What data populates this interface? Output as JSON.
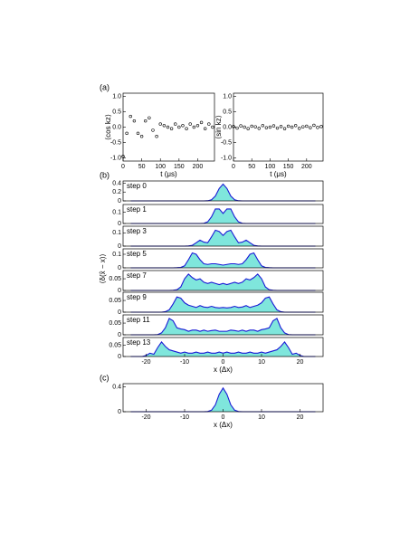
{
  "chart_data": [
    {
      "type": "scatter",
      "panel": "(a)",
      "ylabel": "⟨cos kz⟩",
      "xlabel": "t (μs)",
      "color": "#000000",
      "x": [
        0,
        10,
        20,
        30,
        40,
        50,
        60,
        70,
        80,
        90,
        100,
        110,
        120,
        130,
        140,
        150,
        160,
        170,
        180,
        190,
        200,
        210,
        220,
        230,
        240
      ],
      "values": [
        -0.95,
        -0.2,
        0.35,
        0.2,
        -0.2,
        -0.3,
        0.2,
        0.3,
        -0.1,
        -0.3,
        0.1,
        0.05,
        0.0,
        -0.05,
        0.1,
        0.0,
        0.05,
        -0.05,
        0.1,
        0.0,
        0.05,
        0.15,
        -0.05,
        0.1,
        0.0
      ],
      "xlim": [
        0,
        245
      ],
      "xticks": [
        0,
        50,
        100,
        150,
        200
      ],
      "ylim": [
        -1.1,
        1.1
      ],
      "yticks": [
        {
          "value": -1,
          "label": "-1.0"
        },
        {
          "value": -0.5,
          "label": "-0.5"
        },
        {
          "value": 0,
          "label": "0.0"
        },
        {
          "value": 0.5,
          "label": "0.5"
        },
        {
          "value": 1,
          "label": "1.0"
        }
      ]
    },
    {
      "type": "scatter",
      "ylabel": "⟨sin kz⟩",
      "xlabel": "t (μs)",
      "color": "#000000",
      "x": [
        0,
        10,
        20,
        30,
        40,
        50,
        60,
        70,
        80,
        90,
        100,
        110,
        120,
        130,
        140,
        150,
        160,
        170,
        180,
        190,
        200,
        210,
        220,
        230,
        240
      ],
      "values": [
        0.02,
        -0.03,
        0.04,
        0.0,
        -0.05,
        0.03,
        0.01,
        -0.04,
        0.05,
        -0.02,
        0.0,
        0.04,
        -0.03,
        0.02,
        -0.05,
        0.03,
        0.0,
        0.05,
        -0.04,
        0.01,
        0.03,
        -0.02,
        0.06,
        -0.01,
        0.02
      ],
      "xlim": [
        0,
        245
      ],
      "xticks": [
        0,
        50,
        100,
        150,
        200
      ],
      "ylim": [
        -1.1,
        1.1
      ],
      "yticks": [
        {
          "value": -1,
          "label": "-1.0"
        },
        {
          "value": -0.5,
          "label": "-0.5"
        },
        {
          "value": 0,
          "label": "0.0"
        },
        {
          "value": 0.5,
          "label": "0.5"
        },
        {
          "value": 1,
          "label": "1.0"
        }
      ]
    },
    {
      "type": "line",
      "panel": "(b)",
      "annotation": "step 0",
      "color": "#1a1ad6",
      "fill_color": "#7fe6dc",
      "x": [
        -24,
        -23,
        -22,
        -21,
        -20,
        -19,
        -18,
        -17,
        -16,
        -15,
        -14,
        -13,
        -12,
        -11,
        -10,
        -9,
        -8,
        -7,
        -6,
        -5,
        -4,
        -3,
        -2,
        -1,
        0,
        1,
        2,
        3,
        4,
        5,
        6,
        7,
        8,
        9,
        10,
        11,
        12,
        13,
        14,
        15,
        16,
        17,
        18,
        19,
        20,
        21,
        22,
        23,
        24
      ],
      "values": [
        0,
        0,
        0,
        0,
        0,
        0,
        0,
        0,
        0,
        0,
        0,
        0,
        0,
        0,
        0,
        0,
        0,
        0,
        0,
        0,
        0.003,
        0.025,
        0.11,
        0.28,
        0.38,
        0.28,
        0.11,
        0.025,
        0.003,
        0,
        0,
        0,
        0,
        0,
        0,
        0,
        0,
        0,
        0,
        0,
        0,
        0,
        0,
        0,
        0,
        0,
        0,
        0,
        0
      ],
      "xlim": [
        -26,
        26
      ],
      "ylim": [
        0,
        0.45
      ],
      "yticks": [
        0,
        0.2,
        0.4
      ]
    },
    {
      "type": "line",
      "annotation": "step 1",
      "color": "#1a1ad6",
      "fill_color": "#7fe6dc",
      "x": [
        -24,
        -23,
        -22,
        -21,
        -20,
        -19,
        -18,
        -17,
        -16,
        -15,
        -14,
        -13,
        -12,
        -11,
        -10,
        -9,
        -8,
        -7,
        -6,
        -5,
        -4,
        -3,
        -2,
        -1,
        0,
        1,
        2,
        3,
        4,
        5,
        6,
        7,
        8,
        9,
        10,
        11,
        12,
        13,
        14,
        15,
        16,
        17,
        18,
        19,
        20,
        21,
        22,
        23,
        24
      ],
      "values": [
        0,
        0,
        0,
        0,
        0,
        0,
        0,
        0,
        0,
        0,
        0,
        0,
        0,
        0,
        0,
        0,
        0,
        0,
        0,
        0.002,
        0.015,
        0.06,
        0.13,
        0.13,
        0.09,
        0.13,
        0.13,
        0.06,
        0.015,
        0.002,
        0,
        0,
        0,
        0,
        0,
        0,
        0,
        0,
        0,
        0,
        0,
        0,
        0,
        0,
        0,
        0,
        0,
        0,
        0
      ],
      "xlim": [
        -26,
        26
      ],
      "ylim": [
        0,
        0.17
      ],
      "yticks": [
        0,
        0.1
      ]
    },
    {
      "type": "line",
      "annotation": "step 3",
      "color": "#1a1ad6",
      "fill_color": "#7fe6dc",
      "x": [
        -24,
        -23,
        -22,
        -21,
        -20,
        -19,
        -18,
        -17,
        -16,
        -15,
        -14,
        -13,
        -12,
        -11,
        -10,
        -9,
        -8,
        -7,
        -6,
        -5,
        -4,
        -3,
        -2,
        -1,
        0,
        1,
        2,
        3,
        4,
        5,
        6,
        7,
        8,
        9,
        10,
        11,
        12,
        13,
        14,
        15,
        16,
        17,
        18,
        19,
        20,
        21,
        22,
        23,
        24
      ],
      "values": [
        0,
        0,
        0,
        0,
        0,
        0,
        0,
        0,
        0,
        0,
        0,
        0,
        0,
        0,
        0,
        0.001,
        0.006,
        0.025,
        0.045,
        0.03,
        0.025,
        0.07,
        0.12,
        0.11,
        0.08,
        0.11,
        0.12,
        0.07,
        0.025,
        0.03,
        0.045,
        0.025,
        0.006,
        0.001,
        0,
        0,
        0,
        0,
        0,
        0,
        0,
        0,
        0,
        0,
        0,
        0,
        0,
        0,
        0
      ],
      "xlim": [
        -26,
        26
      ],
      "ylim": [
        0,
        0.15
      ],
      "yticks": [
        0,
        0.1
      ]
    },
    {
      "type": "line",
      "annotation": "step 5",
      "color": "#1a1ad6",
      "fill_color": "#7fe6dc",
      "x": [
        -24,
        -23,
        -22,
        -21,
        -20,
        -19,
        -18,
        -17,
        -16,
        -15,
        -14,
        -13,
        -12,
        -11,
        -10,
        -9,
        -8,
        -7,
        -6,
        -5,
        -4,
        -3,
        -2,
        -1,
        0,
        1,
        2,
        3,
        4,
        5,
        6,
        7,
        8,
        9,
        10,
        11,
        12,
        13,
        14,
        15,
        16,
        17,
        18,
        19,
        20,
        21,
        22,
        23,
        24
      ],
      "values": [
        0,
        0,
        0,
        0,
        0,
        0,
        0,
        0,
        0,
        0,
        0,
        0,
        0.001,
        0.003,
        0.015,
        0.06,
        0.11,
        0.1,
        0.06,
        0.03,
        0.025,
        0.03,
        0.03,
        0.025,
        0.02,
        0.025,
        0.03,
        0.03,
        0.025,
        0.03,
        0.06,
        0.1,
        0.11,
        0.06,
        0.015,
        0.003,
        0.001,
        0,
        0,
        0,
        0,
        0,
        0,
        0,
        0,
        0,
        0,
        0,
        0
      ],
      "xlim": [
        -26,
        26
      ],
      "ylim": [
        0,
        0.14
      ],
      "yticks": [
        0,
        0.1
      ]
    },
    {
      "type": "line",
      "annotation": "step 7",
      "ylabel": "⟨δ(x̂ − x)⟩",
      "color": "#1a1ad6",
      "fill_color": "#7fe6dc",
      "x": [
        -24,
        -23,
        -22,
        -21,
        -20,
        -19,
        -18,
        -17,
        -16,
        -15,
        -14,
        -13,
        -12,
        -11,
        -10,
        -9,
        -8,
        -7,
        -6,
        -5,
        -4,
        -3,
        -2,
        -1,
        0,
        1,
        2,
        3,
        4,
        5,
        6,
        7,
        8,
        9,
        10,
        11,
        12,
        13,
        14,
        15,
        16,
        17,
        18,
        19,
        20,
        21,
        22,
        23,
        24
      ],
      "values": [
        0,
        0,
        0,
        0,
        0,
        0,
        0,
        0,
        0,
        0,
        0,
        0.001,
        0.003,
        0.015,
        0.05,
        0.07,
        0.055,
        0.045,
        0.05,
        0.035,
        0.03,
        0.035,
        0.03,
        0.025,
        0.03,
        0.025,
        0.03,
        0.035,
        0.03,
        0.035,
        0.05,
        0.045,
        0.055,
        0.07,
        0.05,
        0.015,
        0.003,
        0.001,
        0,
        0,
        0,
        0,
        0,
        0,
        0,
        0,
        0,
        0,
        0
      ],
      "xlim": [
        -26,
        26
      ],
      "ylim": [
        0,
        0.085
      ],
      "yticks": [
        0,
        0.05
      ]
    },
    {
      "type": "line",
      "annotation": "step 9",
      "color": "#1a1ad6",
      "fill_color": "#7fe6dc",
      "x": [
        -24,
        -23,
        -22,
        -21,
        -20,
        -19,
        -18,
        -17,
        -16,
        -15,
        -14,
        -13,
        -12,
        -11,
        -10,
        -9,
        -8,
        -7,
        -6,
        -5,
        -4,
        -3,
        -2,
        -1,
        0,
        1,
        2,
        3,
        4,
        5,
        6,
        7,
        8,
        9,
        10,
        11,
        12,
        13,
        14,
        15,
        16,
        17,
        18,
        19,
        20,
        21,
        22,
        23,
        24
      ],
      "values": [
        0,
        0,
        0,
        0,
        0,
        0,
        0,
        0,
        0,
        0.002,
        0.01,
        0.035,
        0.065,
        0.06,
        0.04,
        0.03,
        0.025,
        0.02,
        0.028,
        0.022,
        0.02,
        0.025,
        0.02,
        0.018,
        0.02,
        0.018,
        0.02,
        0.025,
        0.02,
        0.022,
        0.028,
        0.02,
        0.025,
        0.03,
        0.04,
        0.06,
        0.065,
        0.035,
        0.01,
        0.002,
        0,
        0,
        0,
        0,
        0,
        0,
        0,
        0,
        0
      ],
      "xlim": [
        -26,
        26
      ],
      "ylim": [
        0,
        0.085
      ],
      "yticks": [
        0,
        0.05
      ]
    },
    {
      "type": "line",
      "annotation": "step 11",
      "color": "#1a1ad6",
      "fill_color": "#7fe6dc",
      "x": [
        -24,
        -23,
        -22,
        -21,
        -20,
        -19,
        -18,
        -17,
        -16,
        -15,
        -14,
        -13,
        -12,
        -11,
        -10,
        -9,
        -8,
        -7,
        -6,
        -5,
        -4,
        -3,
        -2,
        -1,
        0,
        1,
        2,
        3,
        4,
        5,
        6,
        7,
        8,
        9,
        10,
        11,
        12,
        13,
        14,
        15,
        16,
        17,
        18,
        19,
        20,
        21,
        22,
        23,
        24
      ],
      "values": [
        0,
        0,
        0,
        0,
        0,
        0,
        0,
        0.001,
        0.008,
        0.03,
        0.07,
        0.06,
        0.03,
        0.025,
        0.022,
        0.015,
        0.02,
        0.02,
        0.015,
        0.02,
        0.015,
        0.018,
        0.02,
        0.015,
        0.015,
        0.015,
        0.02,
        0.018,
        0.015,
        0.02,
        0.015,
        0.02,
        0.02,
        0.015,
        0.022,
        0.025,
        0.03,
        0.06,
        0.07,
        0.03,
        0.008,
        0.001,
        0,
        0,
        0,
        0,
        0,
        0,
        0
      ],
      "xlim": [
        -26,
        26
      ],
      "ylim": [
        0,
        0.085
      ],
      "yticks": [
        0,
        0.05
      ]
    },
    {
      "type": "line",
      "annotation": "step 13",
      "xlabel": "x (Δx)",
      "color": "#1a1ad6",
      "fill_color": "#7fe6dc",
      "x": [
        -24,
        -23,
        -22,
        -21,
        -20,
        -19,
        -18,
        -17,
        -16,
        -15,
        -14,
        -13,
        -12,
        -11,
        -10,
        -9,
        -8,
        -7,
        -6,
        -5,
        -4,
        -3,
        -2,
        -1,
        0,
        1,
        2,
        3,
        4,
        5,
        6,
        7,
        8,
        9,
        10,
        11,
        12,
        13,
        14,
        15,
        16,
        17,
        18,
        19,
        20,
        21,
        22,
        23,
        24
      ],
      "values": [
        0,
        0,
        0,
        0,
        0.005,
        0.015,
        0.01,
        0.04,
        0.065,
        0.045,
        0.03,
        0.025,
        0.02,
        0.015,
        0.02,
        0.015,
        0.015,
        0.02,
        0.015,
        0.015,
        0.02,
        0.015,
        0.015,
        0.02,
        0.015,
        0.02,
        0.015,
        0.015,
        0.02,
        0.015,
        0.015,
        0.02,
        0.015,
        0.015,
        0.02,
        0.015,
        0.02,
        0.025,
        0.03,
        0.045,
        0.065,
        0.04,
        0.01,
        0.015,
        0.005,
        0,
        0,
        0,
        0
      ],
      "xlim": [
        -26,
        26
      ],
      "xticks": [
        -20,
        -10,
        0,
        10,
        20
      ],
      "ylim": [
        0,
        0.085
      ],
      "yticks": [
        0,
        0.05
      ]
    },
    {
      "type": "line",
      "panel": "(c)",
      "xlabel": "x (Δx)",
      "color": "#1a1ad6",
      "fill_color": "#7fe6dc",
      "x": [
        -24,
        -23,
        -22,
        -21,
        -20,
        -19,
        -18,
        -17,
        -16,
        -15,
        -14,
        -13,
        -12,
        -11,
        -10,
        -9,
        -8,
        -7,
        -6,
        -5,
        -4,
        -3,
        -2,
        -1,
        0,
        1,
        2,
        3,
        4,
        5,
        6,
        7,
        8,
        9,
        10,
        11,
        12,
        13,
        14,
        15,
        16,
        17,
        18,
        19,
        20,
        21,
        22,
        23,
        24
      ],
      "values": [
        0,
        0,
        0,
        0,
        0,
        0,
        0,
        0,
        0,
        0,
        0,
        0,
        0,
        0,
        0,
        0,
        0,
        0,
        0,
        0,
        0.003,
        0.025,
        0.11,
        0.28,
        0.38,
        0.28,
        0.11,
        0.025,
        0.003,
        0,
        0,
        0,
        0,
        0,
        0,
        0,
        0,
        0,
        0,
        0,
        0,
        0,
        0,
        0,
        0,
        0,
        0,
        0,
        0
      ],
      "xlim": [
        -26,
        26
      ],
      "xticks": [
        -20,
        -10,
        0,
        10,
        20
      ],
      "ylim": [
        0,
        0.45
      ],
      "yticks": [
        0,
        0.4
      ]
    }
  ]
}
